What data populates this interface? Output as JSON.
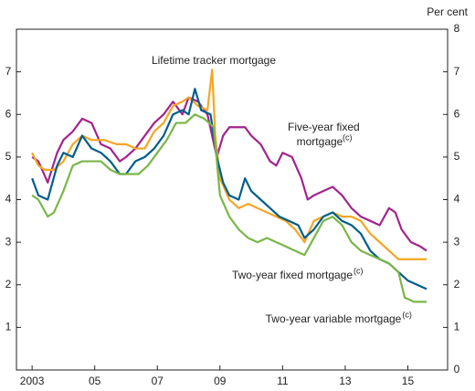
{
  "chart_data": {
    "type": "line",
    "y_axis_label": "Per cent",
    "xlim": [
      2002.5,
      2016.27
    ],
    "xticks": [
      {
        "value": 2003,
        "label": "2003"
      },
      {
        "value": 2005,
        "label": "05"
      },
      {
        "value": 2007,
        "label": "07"
      },
      {
        "value": 2009,
        "label": "09"
      },
      {
        "value": 2011,
        "label": "11"
      },
      {
        "value": 2013,
        "label": "13"
      },
      {
        "value": 2015,
        "label": "15"
      }
    ],
    "ylim": [
      0,
      8
    ],
    "yticks": [
      1,
      2,
      3,
      4,
      5,
      6,
      7
    ],
    "y2lim": [
      0,
      8
    ],
    "y2ticks": [
      0,
      1,
      2,
      3,
      4,
      5,
      6,
      7,
      8
    ],
    "series": [
      {
        "name": "Five-year fixed mortgage",
        "superscript": "(c)",
        "color": "#a3238e",
        "x": [
          2003.0,
          2003.2,
          2003.5,
          2003.8,
          2004.0,
          2004.3,
          2004.6,
          2004.9,
          2005.2,
          2005.5,
          2005.8,
          2006.0,
          2006.3,
          2006.6,
          2006.9,
          2007.2,
          2007.5,
          2007.8,
          2008.0,
          2008.3,
          2008.6,
          2008.9,
          2009.1,
          2009.3,
          2009.8,
          2010.0,
          2010.3,
          2010.6,
          2010.8,
          2011.0,
          2011.3,
          2011.6,
          2011.8,
          2012.0,
          2012.3,
          2012.6,
          2012.9,
          2013.2,
          2013.5,
          2013.8,
          2014.1,
          2014.4,
          2014.6,
          2014.8,
          2015.1,
          2015.4,
          2015.6
        ],
        "values": [
          5.0,
          4.9,
          4.4,
          5.1,
          5.4,
          5.6,
          5.9,
          5.8,
          5.3,
          5.2,
          4.9,
          5.0,
          5.2,
          5.5,
          5.8,
          6.0,
          6.3,
          6.0,
          6.4,
          6.3,
          6.0,
          5.0,
          5.5,
          5.7,
          5.7,
          5.5,
          5.3,
          4.9,
          4.8,
          5.1,
          5.0,
          4.5,
          4.0,
          4.1,
          4.2,
          4.3,
          4.1,
          3.8,
          3.6,
          3.5,
          3.4,
          3.8,
          3.7,
          3.3,
          3.0,
          2.9,
          2.8
        ]
      },
      {
        "name": "Lifetime tracker mortgage",
        "color": "#f5a623",
        "x": [
          2003.0,
          2003.2,
          2003.4,
          2003.7,
          2004.0,
          2004.3,
          2004.6,
          2004.9,
          2005.3,
          2005.7,
          2006.0,
          2006.3,
          2006.6,
          2006.9,
          2007.2,
          2007.5,
          2007.8,
          2008.0,
          2008.3,
          2008.6,
          2008.75,
          2008.85,
          2009.0,
          2009.3,
          2009.6,
          2009.9,
          2010.2,
          2010.5,
          2010.8,
          2011.1,
          2011.4,
          2011.7,
          2012.0,
          2012.3,
          2012.6,
          2012.9,
          2013.2,
          2013.5,
          2013.8,
          2014.1,
          2014.4,
          2014.7,
          2015.0,
          2015.3,
          2015.6
        ],
        "values": [
          5.1,
          4.8,
          4.7,
          4.7,
          4.9,
          5.3,
          5.5,
          5.4,
          5.4,
          5.3,
          5.3,
          5.2,
          5.2,
          5.6,
          5.8,
          6.2,
          6.3,
          6.4,
          6.2,
          6.1,
          7.05,
          5.5,
          4.5,
          4.0,
          3.8,
          3.9,
          3.8,
          3.7,
          3.6,
          3.5,
          3.3,
          3.0,
          3.5,
          3.6,
          3.7,
          3.6,
          3.6,
          3.5,
          3.2,
          3.0,
          2.8,
          2.6,
          2.6,
          2.6,
          2.6
        ]
      },
      {
        "name": "Two-year fixed mortgage",
        "superscript": "(c)",
        "color": "#005e8c",
        "x": [
          2003.0,
          2003.2,
          2003.5,
          2003.8,
          2004.0,
          2004.3,
          2004.6,
          2004.9,
          2005.2,
          2005.5,
          2005.8,
          2006.0,
          2006.3,
          2006.6,
          2006.9,
          2007.2,
          2007.5,
          2007.8,
          2008.0,
          2008.2,
          2008.4,
          2008.7,
          2008.9,
          2009.1,
          2009.3,
          2009.6,
          2009.8,
          2010.0,
          2010.3,
          2010.6,
          2010.9,
          2011.2,
          2011.5,
          2011.7,
          2012.0,
          2012.3,
          2012.6,
          2012.9,
          2013.2,
          2013.5,
          2013.8,
          2014.1,
          2014.4,
          2014.7,
          2015.0,
          2015.3,
          2015.6
        ],
        "values": [
          4.5,
          4.1,
          4.0,
          4.8,
          5.1,
          5.0,
          5.5,
          5.2,
          5.1,
          4.9,
          4.6,
          4.6,
          4.9,
          5.0,
          5.2,
          5.5,
          6.0,
          6.1,
          6.0,
          6.6,
          6.1,
          6.0,
          5.0,
          4.4,
          4.1,
          4.0,
          4.5,
          4.2,
          4.0,
          3.8,
          3.6,
          3.5,
          3.4,
          3.1,
          3.3,
          3.6,
          3.7,
          3.5,
          3.4,
          3.2,
          2.8,
          2.6,
          2.5,
          2.3,
          2.1,
          2.0,
          1.9
        ]
      },
      {
        "name": "Two-year variable mortgage",
        "superscript": "(c)",
        "color": "#7ab648",
        "x": [
          2003.0,
          2003.2,
          2003.5,
          2003.7,
          2004.0,
          2004.3,
          2004.6,
          2004.9,
          2005.2,
          2005.5,
          2005.8,
          2006.1,
          2006.4,
          2006.7,
          2007.0,
          2007.3,
          2007.6,
          2007.9,
          2008.2,
          2008.5,
          2008.8,
          2009.0,
          2009.3,
          2009.6,
          2009.9,
          2010.2,
          2010.5,
          2010.8,
          2011.1,
          2011.4,
          2011.7,
          2012.0,
          2012.3,
          2012.6,
          2012.9,
          2013.2,
          2013.5,
          2013.8,
          2014.1,
          2014.4,
          2014.7,
          2014.9,
          2015.2,
          2015.6
        ],
        "values": [
          4.1,
          4.0,
          3.6,
          3.7,
          4.2,
          4.8,
          4.9,
          4.9,
          4.9,
          4.7,
          4.6,
          4.6,
          4.6,
          4.8,
          5.1,
          5.4,
          5.8,
          5.8,
          6.0,
          5.9,
          5.7,
          4.1,
          3.6,
          3.3,
          3.1,
          3.0,
          3.1,
          3.0,
          2.9,
          2.8,
          2.7,
          3.1,
          3.5,
          3.6,
          3.4,
          3.0,
          2.8,
          2.7,
          2.6,
          2.5,
          2.3,
          1.7,
          1.6,
          1.6
        ]
      }
    ]
  }
}
